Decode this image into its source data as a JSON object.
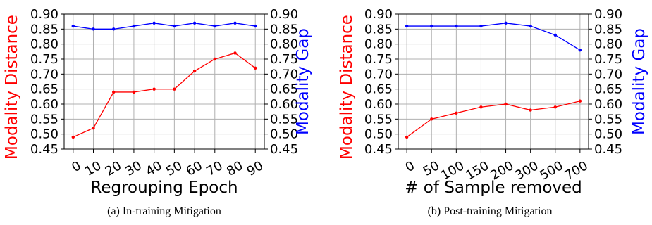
{
  "chart_data": [
    {
      "type": "line",
      "xlabel": "Regrouping Epoch",
      "ylabel_left": "Modality Distance",
      "ylabel_right": "Modality Gap",
      "caption": "(a) In-training Mitigation",
      "categories": [
        "0",
        "10",
        "20",
        "30",
        "40",
        "50",
        "60",
        "70",
        "80",
        "90"
      ],
      "ylim": [
        0.45,
        0.9
      ],
      "yticks": [
        "0.45",
        "0.50",
        "0.55",
        "0.60",
        "0.65",
        "0.70",
        "0.75",
        "0.80",
        "0.85",
        "0.90"
      ],
      "grid": true,
      "series": [
        {
          "label": "Modality Distance",
          "axis": "left",
          "color": "#ff0000",
          "values": [
            0.49,
            0.52,
            0.64,
            0.64,
            0.65,
            0.65,
            0.71,
            0.75,
            0.77,
            0.72
          ]
        },
        {
          "label": "Modality Gap",
          "axis": "right",
          "color": "#0000ff",
          "values": [
            0.86,
            0.85,
            0.85,
            0.86,
            0.87,
            0.86,
            0.87,
            0.86,
            0.87,
            0.86
          ]
        }
      ]
    },
    {
      "type": "line",
      "xlabel": "# of Sample removed",
      "ylabel_left": "Modality Distance",
      "ylabel_right": "Modality Gap",
      "caption": "(b) Post-training Mitigation",
      "categories": [
        "0",
        "50",
        "100",
        "150",
        "200",
        "300",
        "500",
        "700"
      ],
      "ylim": [
        0.45,
        0.9
      ],
      "yticks": [
        "0.45",
        "0.50",
        "0.55",
        "0.60",
        "0.65",
        "0.70",
        "0.75",
        "0.80",
        "0.85",
        "0.90"
      ],
      "grid": true,
      "series": [
        {
          "label": "Modality Distance",
          "axis": "left",
          "color": "#ff0000",
          "values": [
            0.49,
            0.55,
            0.57,
            0.59,
            0.6,
            0.58,
            0.59,
            0.61
          ]
        },
        {
          "label": "Modality Gap",
          "axis": "right",
          "color": "#0000ff",
          "values": [
            0.86,
            0.86,
            0.86,
            0.86,
            0.87,
            0.86,
            0.83,
            0.78
          ]
        }
      ]
    }
  ]
}
